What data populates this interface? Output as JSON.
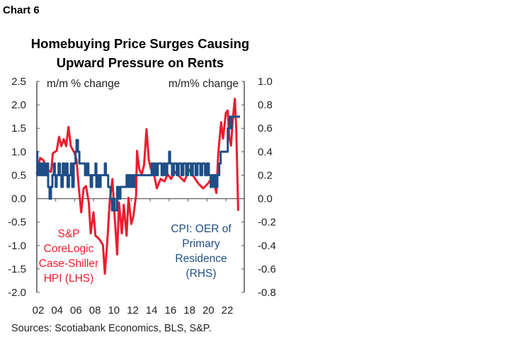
{
  "chart_number": "Chart 6",
  "chart_data": {
    "type": "line",
    "title": [
      "Homebuying Price Surges Causing",
      "Upward Pressure on Rents"
    ],
    "source": "Sources: Scotiabank Economics, BLS, S&P.",
    "left_axis": {
      "label": "m/m % change",
      "ylim": [
        -2.0,
        2.5
      ],
      "ticks": [
        "2.5",
        "2.0",
        "1.5",
        "1.0",
        "0.5",
        "0.0",
        "-0.5",
        "-1.0",
        "-1.5",
        "-2.0"
      ]
    },
    "right_axis": {
      "label": "m/m% change",
      "ylim": [
        -0.8,
        1.0
      ],
      "ticks": [
        "1.0",
        "0.8",
        "0.6",
        "0.4",
        "0.2",
        "0.0",
        "-0.2",
        "-0.4",
        "-0.6",
        "-0.8"
      ]
    },
    "x_ticks": [
      "02",
      "04",
      "06",
      "08",
      "10",
      "12",
      "14",
      "16",
      "18",
      "20",
      "22"
    ],
    "xlim": [
      2002,
      2024
    ],
    "grid": false,
    "series": [
      {
        "name": "S&P CoreLogic Case-Shiller HPI (LHS)",
        "axis": "left",
        "color": "#ec1c2e",
        "x": [
          2002.0,
          2002.35,
          2002.7,
          2003.1,
          2003.5,
          2003.7,
          2004.1,
          2004.35,
          2004.6,
          2004.85,
          2005.1,
          2005.35,
          2005.6,
          2006.0,
          2006.2,
          2006.45,
          2006.7,
          2006.95,
          2007.2,
          2007.5,
          2007.7,
          2008.0,
          2008.2,
          2008.5,
          2008.7,
          2009.0,
          2009.2,
          2009.5,
          2009.7,
          2010.0,
          2010.2,
          2010.5,
          2010.7,
          2011.0,
          2011.2,
          2011.5,
          2011.7,
          2012.0,
          2012.2,
          2012.5,
          2012.6,
          2012.85,
          2013.1,
          2013.35,
          2013.6,
          2013.85,
          2014.1,
          2014.35,
          2014.7,
          2015.1,
          2015.5,
          2015.85,
          2016.2,
          2016.6,
          2017.1,
          2017.6,
          2018.1,
          2018.6,
          2019.1,
          2019.6,
          2020.1,
          2020.6,
          2021.0,
          2021.2,
          2021.5,
          2021.7,
          2022.0,
          2022.2,
          2022.35,
          2022.55,
          2022.75,
          2022.95,
          2023.1,
          2023.3
        ],
        "y": [
          0.52,
          0.87,
          0.82,
          0.62,
          0.57,
          0.97,
          1.02,
          1.32,
          1.12,
          1.27,
          1.12,
          1.53,
          1.12,
          0.97,
          0.82,
          0.22,
          -0.29,
          0.22,
          0.27,
          -0.08,
          -0.74,
          -0.29,
          -0.79,
          -0.84,
          -0.89,
          -0.99,
          -1.6,
          -0.79,
          -0.08,
          0.42,
          -0.29,
          -1.19,
          -0.08,
          -0.74,
          -0.13,
          -0.79,
          0.02,
          -0.54,
          -0.39,
          0.07,
          1.02,
          0.62,
          0.52,
          0.72,
          1.48,
          0.82,
          0.62,
          0.57,
          0.22,
          0.42,
          0.37,
          0.52,
          0.42,
          0.57,
          0.47,
          0.37,
          0.62,
          0.47,
          0.32,
          0.22,
          0.32,
          0.47,
          0.12,
          0.97,
          1.63,
          1.28,
          1.83,
          1.88,
          1.33,
          1.13,
          1.73,
          2.13,
          1.48,
          -0.26
        ]
      },
      {
        "name": "CPI: OER of Primary Residence (RHS)",
        "axis": "right",
        "color": "#1f4e87",
        "step": true,
        "x": [
          2002.0,
          2002.05,
          2002.15,
          2002.3,
          2002.45,
          2002.6,
          2002.75,
          2002.9,
          2003.1,
          2003.2,
          2003.35,
          2003.5,
          2003.65,
          2003.8,
          2003.9,
          2004.0,
          2004.1,
          2004.3,
          2004.45,
          2004.6,
          2004.75,
          2004.9,
          2005.1,
          2005.25,
          2005.4,
          2005.6,
          2005.75,
          2005.9,
          2006.1,
          2006.2,
          2006.35,
          2006.5,
          2007.0,
          2007.1,
          2007.3,
          2007.45,
          2007.7,
          2007.85,
          2008.2,
          2008.3,
          2008.45,
          2008.6,
          2008.75,
          2009.2,
          2009.3,
          2009.55,
          2009.8,
          2009.95,
          2010.1,
          2010.25,
          2010.5,
          2010.7,
          2010.85,
          2011.5,
          2011.6,
          2011.75,
          2011.9,
          2012.05,
          2012.2,
          2012.35,
          2014.0,
          2014.15,
          2014.3,
          2014.45,
          2014.6,
          2014.8,
          2015.2,
          2015.4,
          2015.6,
          2015.8,
          2016.0,
          2016.1,
          2016.3,
          2016.5,
          2016.8,
          2017.0,
          2017.3,
          2017.5,
          2017.8,
          2018.0,
          2018.3,
          2018.5,
          2018.8,
          2019.0,
          2019.3,
          2019.5,
          2019.8,
          2020.0,
          2020.2,
          2020.4,
          2020.55,
          2020.7,
          2020.85,
          2021.0,
          2021.1,
          2021.3,
          2021.45,
          2022.0,
          2022.2,
          2022.4,
          2022.5,
          2022.6,
          2023.5
        ],
        "y": [
          0.4,
          0.2,
          0.3,
          0.2,
          0.3,
          0.2,
          0.3,
          0.2,
          0.3,
          0.1,
          0.0,
          0.1,
          0.2,
          0.3,
          0.2,
          0.1,
          0.2,
          0.3,
          0.2,
          0.1,
          0.3,
          0.2,
          0.3,
          0.1,
          0.2,
          0.3,
          0.1,
          0.3,
          0.4,
          0.5,
          0.4,
          0.3,
          0.3,
          0.2,
          0.3,
          0.2,
          0.1,
          0.2,
          0.3,
          0.1,
          0.2,
          0.1,
          0.2,
          0.3,
          0.2,
          0.1,
          0.0,
          -0.1,
          0.0,
          -0.1,
          0.1,
          0.0,
          0.1,
          0.2,
          0.1,
          0.2,
          0.1,
          0.2,
          0.1,
          0.2,
          0.2,
          0.3,
          0.2,
          0.3,
          0.2,
          0.3,
          0.2,
          0.3,
          0.2,
          0.3,
          0.4,
          0.3,
          0.2,
          0.3,
          0.2,
          0.3,
          0.2,
          0.3,
          0.2,
          0.3,
          0.2,
          0.3,
          0.2,
          0.3,
          0.2,
          0.3,
          0.2,
          0.3,
          0.2,
          0.1,
          0.2,
          0.1,
          0.2,
          0.1,
          0.2,
          0.3,
          0.4,
          0.4,
          0.6,
          0.7,
          0.6,
          0.7,
          0.7
        ]
      }
    ],
    "annotations": {
      "lhs": [
        "S&P",
        "CoreLogic",
        "Case-Shiller",
        "HPI (LHS)"
      ],
      "rhs": [
        "CPI: OER of",
        "Primary",
        "Residence",
        "(RHS)"
      ]
    }
  }
}
